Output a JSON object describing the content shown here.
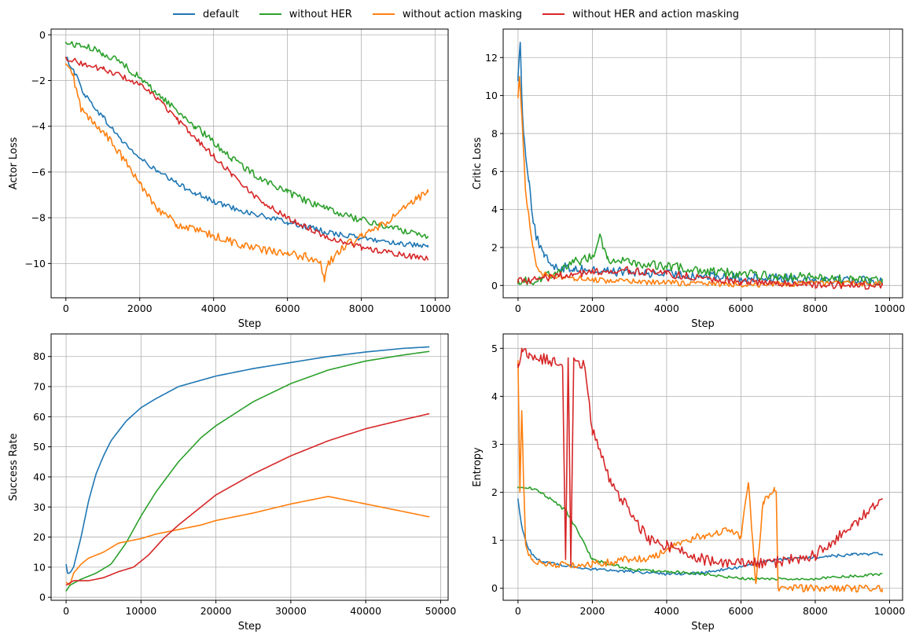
{
  "legend": [
    {
      "name": "default",
      "color": "#1f77b4"
    },
    {
      "name": "without HER",
      "color": "#2ca02c"
    },
    {
      "name": "without action masking",
      "color": "#ff7f0e"
    },
    {
      "name": "without HER and action masking",
      "color": "#d62728"
    }
  ],
  "chart_data": [
    {
      "type": "line",
      "xlabel": "Step",
      "ylabel": "Actor Loss",
      "xlim": [
        -400,
        10350
      ],
      "ylim": [
        -11.5,
        0.25
      ],
      "xticks": [
        0,
        2000,
        4000,
        6000,
        8000,
        10000
      ],
      "yticks": [
        -10,
        -8,
        -6,
        -4,
        -2,
        0
      ],
      "ytick_labels": [
        "−10",
        "−8",
        "−6",
        "−4",
        "−2",
        "0"
      ],
      "grid": true,
      "noise": [
        0.12,
        0.15,
        0.18,
        0.12
      ],
      "series": [
        {
          "name": "default",
          "color": "#1f77b4",
          "x": [
            0,
            200,
            500,
            1000,
            1500,
            2000,
            2500,
            3000,
            3500,
            4000,
            5000,
            6000,
            7000,
            8000,
            9000,
            9800
          ],
          "y": [
            -1.0,
            -1.5,
            -2.6,
            -3.6,
            -4.6,
            -5.4,
            -6.0,
            -6.5,
            -6.9,
            -7.3,
            -7.8,
            -8.2,
            -8.6,
            -8.9,
            -9.1,
            -9.3
          ]
        },
        {
          "name": "without HER",
          "color": "#2ca02c",
          "x": [
            0,
            500,
            1000,
            1500,
            2000,
            2500,
            3000,
            3500,
            4000,
            4500,
            5000,
            6000,
            7000,
            8000,
            9000,
            9800
          ],
          "y": [
            -0.35,
            -0.5,
            -0.8,
            -1.2,
            -1.9,
            -2.6,
            -3.3,
            -4.0,
            -4.7,
            -5.4,
            -6.0,
            -6.9,
            -7.6,
            -8.1,
            -8.5,
            -8.8
          ]
        },
        {
          "name": "without action masking",
          "color": "#ff7f0e",
          "x": [
            0,
            200,
            400,
            700,
            1000,
            1500,
            2000,
            2500,
            3000,
            4000,
            5000,
            6000,
            6500,
            6900,
            7000,
            7100,
            7500,
            8000,
            8500,
            9000,
            9500,
            9800
          ],
          "y": [
            -1.3,
            -1.8,
            -3.2,
            -3.8,
            -4.2,
            -5.3,
            -6.5,
            -7.6,
            -8.3,
            -8.8,
            -9.3,
            -9.6,
            -9.7,
            -9.9,
            -10.8,
            -10.0,
            -9.3,
            -8.8,
            -8.4,
            -7.8,
            -7.2,
            -6.9
          ]
        },
        {
          "name": "without HER and action masking",
          "color": "#d62728",
          "x": [
            0,
            500,
            1000,
            1500,
            2000,
            2500,
            3000,
            3500,
            4000,
            4500,
            5000,
            5500,
            6000,
            6500,
            7000,
            8000,
            9000,
            9800
          ],
          "y": [
            -1.0,
            -1.3,
            -1.5,
            -1.8,
            -2.2,
            -2.8,
            -3.7,
            -4.5,
            -5.3,
            -6.1,
            -6.9,
            -7.5,
            -8.0,
            -8.4,
            -8.8,
            -9.3,
            -9.6,
            -9.8
          ]
        }
      ]
    },
    {
      "type": "line",
      "xlabel": "Step",
      "ylabel": "Critic Loss",
      "xlim": [
        -400,
        10350
      ],
      "ylim": [
        -0.65,
        13.5
      ],
      "xticks": [
        0,
        2000,
        4000,
        6000,
        8000,
        10000
      ],
      "yticks": [
        0,
        2,
        4,
        6,
        8,
        10,
        12
      ],
      "grid": true,
      "noise": [
        0.25,
        0.25,
        0.15,
        0.2
      ],
      "series": [
        {
          "name": "default",
          "color": "#1f77b4",
          "x": [
            0,
            60,
            100,
            150,
            200,
            300,
            400,
            500,
            700,
            1000,
            1500,
            2000,
            3000,
            4000,
            5000,
            6000,
            7000,
            8000,
            9000,
            9800
          ],
          "y": [
            11.0,
            12.8,
            10.0,
            8.0,
            7.0,
            5.5,
            3.5,
            2.5,
            1.5,
            1.0,
            0.9,
            0.8,
            0.7,
            0.6,
            0.5,
            0.4,
            0.4,
            0.35,
            0.3,
            0.2
          ]
        },
        {
          "name": "without HER",
          "color": "#2ca02c",
          "x": [
            0,
            300,
            600,
            1000,
            1500,
            2000,
            2200,
            2400,
            3000,
            4000,
            5000,
            6000,
            7000,
            8000,
            9000,
            9800
          ],
          "y": [
            0.3,
            0.2,
            0.4,
            0.7,
            1.2,
            1.5,
            2.7,
            1.4,
            1.2,
            1.0,
            0.8,
            0.6,
            0.5,
            0.4,
            0.3,
            0.2
          ]
        },
        {
          "name": "without action masking",
          "color": "#ff7f0e",
          "x": [
            0,
            40,
            100,
            150,
            200,
            300,
            400,
            500,
            700,
            1000,
            1500,
            2000,
            3000,
            4000,
            5000,
            6000,
            7000,
            8000,
            9800
          ],
          "y": [
            10.0,
            11.0,
            9.0,
            7.0,
            5.0,
            3.5,
            2.0,
            1.0,
            0.6,
            0.4,
            0.4,
            0.3,
            0.2,
            0.15,
            0.1,
            0.05,
            0.05,
            0.1,
            0.1
          ]
        },
        {
          "name": "without HER and action masking",
          "color": "#d62728",
          "x": [
            0,
            500,
            1000,
            1500,
            2000,
            2500,
            3000,
            4000,
            5000,
            6000,
            7000,
            8000,
            9000,
            9800
          ],
          "y": [
            0.3,
            0.3,
            0.5,
            0.6,
            0.7,
            0.8,
            0.8,
            0.6,
            0.4,
            0.2,
            0.1,
            0.05,
            0.02,
            0.0
          ]
        }
      ]
    },
    {
      "type": "line",
      "xlabel": "Step",
      "ylabel": "Success Rate",
      "xlim": [
        -2000,
        51000
      ],
      "ylim": [
        -1,
        87.5
      ],
      "xticks": [
        0,
        10000,
        20000,
        30000,
        40000,
        50000
      ],
      "yticks": [
        0,
        10,
        20,
        30,
        40,
        50,
        60,
        70,
        80
      ],
      "grid": true,
      "noise": [
        0,
        0,
        0,
        0
      ],
      "series": [
        {
          "name": "default",
          "color": "#1f77b4",
          "x": [
            0,
            200,
            500,
            1000,
            2000,
            3000,
            4000,
            5000,
            6000,
            8000,
            10000,
            12000,
            15000,
            20000,
            25000,
            30000,
            35000,
            40000,
            45000,
            48500
          ],
          "y": [
            11,
            8,
            8,
            10,
            20,
            32,
            41,
            47,
            52,
            58.5,
            63,
            66,
            70,
            73.5,
            76,
            78,
            80,
            81.5,
            82.7,
            83.2
          ]
        },
        {
          "name": "without HER",
          "color": "#2ca02c",
          "x": [
            0,
            500,
            2000,
            4000,
            6000,
            8000,
            10000,
            12000,
            15000,
            18000,
            20000,
            25000,
            30000,
            35000,
            40000,
            45000,
            48500
          ],
          "y": [
            2,
            4,
            6,
            8,
            11,
            18,
            27,
            35,
            45,
            53,
            57,
            65,
            71,
            75.5,
            78.5,
            80.5,
            81.7
          ]
        },
        {
          "name": "without action masking",
          "color": "#ff7f0e",
          "x": [
            0,
            500,
            1000,
            2000,
            3000,
            5000,
            7000,
            10000,
            12000,
            15000,
            18000,
            20000,
            25000,
            30000,
            33000,
            35000,
            40000,
            45000,
            48500
          ],
          "y": [
            5,
            4,
            8,
            11,
            13,
            15,
            18,
            19.5,
            21,
            22.5,
            24,
            25.5,
            28,
            31,
            32.5,
            33.5,
            31,
            28.5,
            26.7
          ]
        },
        {
          "name": "without HER and action masking",
          "color": "#d62728",
          "x": [
            0,
            1000,
            3000,
            5000,
            7000,
            9000,
            11000,
            13000,
            15000,
            18000,
            20000,
            25000,
            30000,
            35000,
            40000,
            45000,
            48500
          ],
          "y": [
            4,
            5.5,
            5.5,
            6.5,
            8.5,
            10,
            14,
            19.5,
            24,
            30,
            34,
            41,
            47,
            52,
            56,
            59,
            61
          ]
        }
      ]
    },
    {
      "type": "line",
      "xlabel": "Step",
      "ylabel": "Entropy",
      "xlim": [
        -400,
        10350
      ],
      "ylim": [
        -0.25,
        5.3
      ],
      "xticks": [
        0,
        2000,
        4000,
        6000,
        8000,
        10000
      ],
      "yticks": [
        0,
        1,
        2,
        3,
        4,
        5
      ],
      "grid": true,
      "noise": [
        0.03,
        0.03,
        0.08,
        0.12
      ],
      "series": [
        {
          "name": "default",
          "color": "#1f77b4",
          "x": [
            0,
            100,
            200,
            300,
            500,
            800,
            1000,
            1500,
            2000,
            3000,
            4000,
            5000,
            6000,
            7000,
            8000,
            9000,
            9800
          ],
          "y": [
            1.85,
            1.3,
            1.0,
            0.8,
            0.6,
            0.55,
            0.5,
            0.45,
            0.4,
            0.35,
            0.3,
            0.32,
            0.45,
            0.6,
            0.65,
            0.7,
            0.72
          ]
        },
        {
          "name": "without HER",
          "color": "#2ca02c",
          "x": [
            0,
            300,
            600,
            1000,
            1300,
            1600,
            2000,
            2500,
            3000,
            4000,
            5000,
            6000,
            7000,
            8000,
            9000,
            9800
          ],
          "y": [
            2.1,
            2.1,
            2.0,
            1.8,
            1.6,
            1.2,
            0.6,
            0.5,
            0.4,
            0.35,
            0.3,
            0.2,
            0.2,
            0.2,
            0.25,
            0.3
          ]
        },
        {
          "name": "without action masking",
          "color": "#ff7f0e",
          "x": [
            0,
            50,
            100,
            150,
            200,
            300,
            400,
            600,
            1000,
            1500,
            2000,
            2500,
            3000,
            3500,
            4000,
            4500,
            5000,
            5500,
            6000,
            6200,
            6400,
            6600,
            6900,
            6950,
            7000,
            8000,
            9000,
            9800
          ],
          "y": [
            4.7,
            2.0,
            3.7,
            2.2,
            1.0,
            0.7,
            0.6,
            0.55,
            0.5,
            0.5,
            0.5,
            0.55,
            0.6,
            0.6,
            0.8,
            1.0,
            1.1,
            1.2,
            1.1,
            2.2,
            0.1,
            1.8,
            2.1,
            2.0,
            0.0,
            0.0,
            0.0,
            0.0
          ]
        },
        {
          "name": "without HER and action masking",
          "color": "#d62728",
          "x": [
            0,
            100,
            300,
            600,
            1000,
            1200,
            1280,
            1350,
            1420,
            1500,
            1800,
            2000,
            2500,
            3000,
            3500,
            4000,
            5000,
            6000,
            7000,
            8000,
            9000,
            9500,
            9800
          ],
          "y": [
            4.6,
            5.0,
            4.9,
            4.8,
            4.7,
            4.6,
            0.6,
            4.8,
            0.5,
            4.8,
            4.6,
            3.3,
            2.2,
            1.6,
            1.0,
            0.9,
            0.6,
            0.5,
            0.55,
            0.7,
            1.3,
            1.7,
            1.85
          ]
        }
      ]
    }
  ]
}
